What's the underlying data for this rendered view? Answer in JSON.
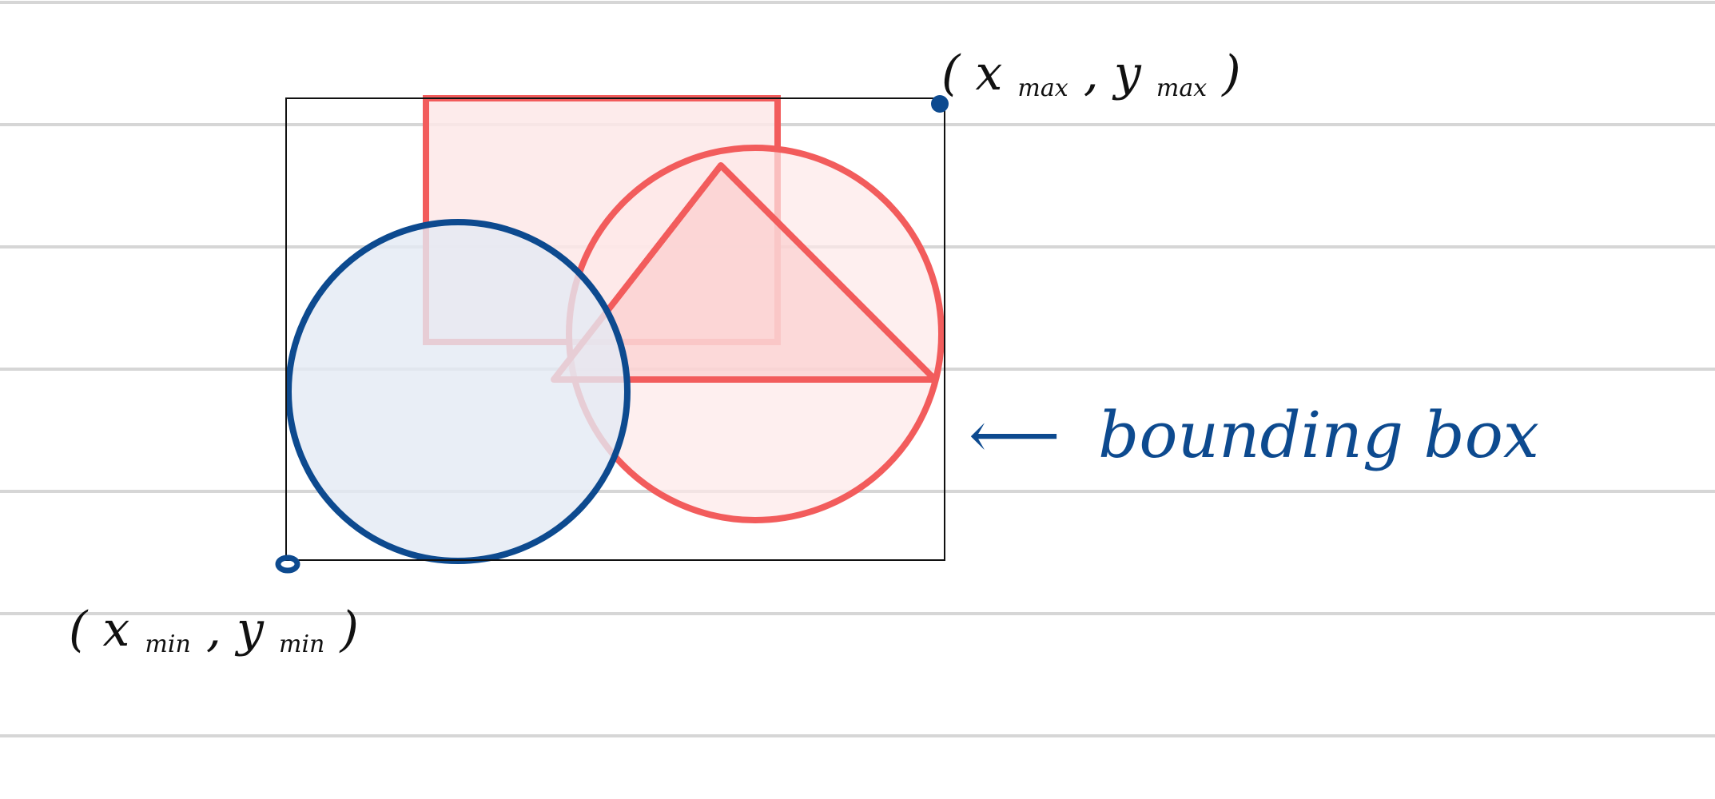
{
  "colors": {
    "ruled_line": "#d6d6d6",
    "bounding_box": "#111111",
    "shape_red": "#f25c5c",
    "shape_red_fill": "#fde8e8",
    "triangle_fill": "#fbcdcd",
    "shape_blue": "#0d4a8f",
    "shape_blue_fill": "#e4eaf4",
    "annotation_blue": "#0d4a8f",
    "annotation_black": "#111111"
  },
  "labels": {
    "max_corner": {
      "open": "(",
      "x": "x",
      "x_sub": "max",
      "sep": ", ",
      "y": "y",
      "y_sub": "max",
      "close": ")"
    },
    "min_corner": {
      "open": "(",
      "x": "x",
      "x_sub": "min",
      "sep": ", ",
      "y": "y",
      "y_sub": "min",
      "close": ")"
    },
    "bounding_box_note": {
      "arrow": "⟵",
      "text": "bounding box"
    }
  },
  "shapes": [
    {
      "kind": "rectangle",
      "color": "red"
    },
    {
      "kind": "circle",
      "color": "red"
    },
    {
      "kind": "triangle",
      "color": "red"
    },
    {
      "kind": "circle",
      "color": "blue"
    }
  ],
  "icons": [
    "corner-point-icon"
  ]
}
